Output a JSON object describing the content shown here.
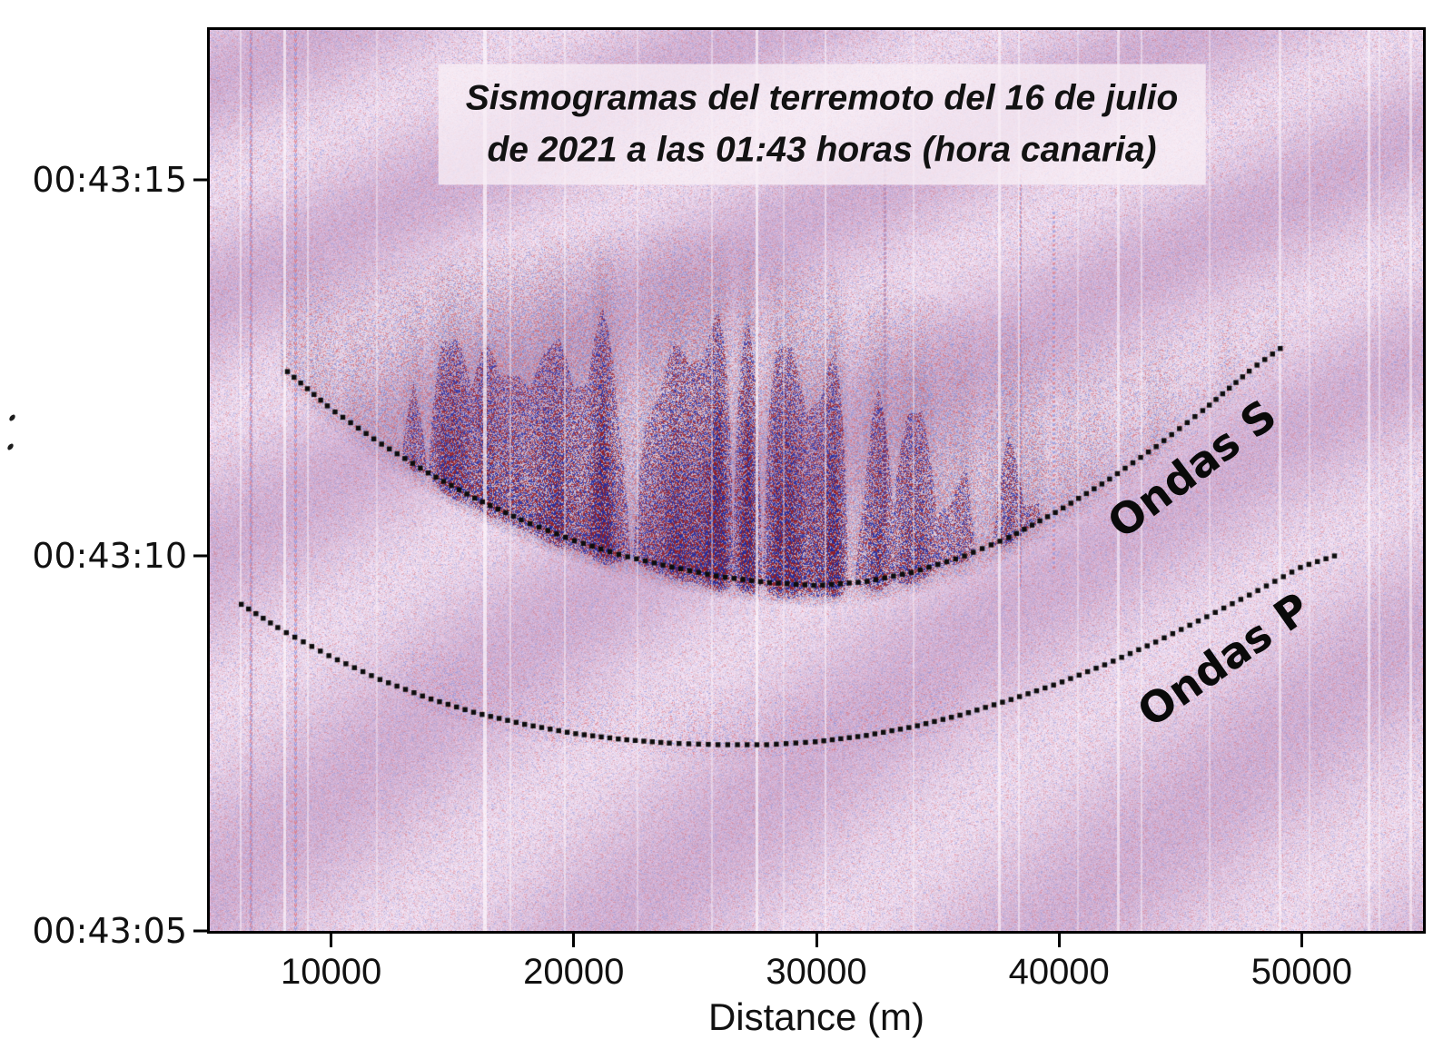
{
  "figure": {
    "title_line1": "Sismogramas del terremoto del 16 de julio",
    "title_line2": "de 2021 a las 01:43 horas (hora canaria)",
    "xlabel": "Distance (m)"
  },
  "chart_data": {
    "type": "heatmap",
    "title": "Sismogramas del terremoto del 16 de julio de 2021 a las 01:43 horas (hora canaria)",
    "xlabel": "Distance (m)",
    "ylabel": "",
    "grid": false,
    "xlim": [
      5000,
      55000
    ],
    "tlim_seconds_after_004300": [
      5,
      17
    ],
    "x_ticks": [
      {
        "value": 10000,
        "label": "10000"
      },
      {
        "value": 20000,
        "label": "20000"
      },
      {
        "value": 30000,
        "label": "30000"
      },
      {
        "value": 40000,
        "label": "40000"
      },
      {
        "value": 50000,
        "label": "50000"
      }
    ],
    "y_ticks": [
      {
        "seconds": 15,
        "label": "00:43:15"
      },
      {
        "seconds": 10,
        "label": "00:43:10"
      },
      {
        "seconds": 5,
        "label": "00:43:05"
      }
    ],
    "series": [
      {
        "name": "Ondas S",
        "style": "dotted",
        "role": "S-wave arrival moveout curve",
        "x": [
          8200,
          10000,
          12000,
          14000,
          16000,
          18000,
          20000,
          22000,
          24000,
          26000,
          28000,
          30000,
          32000,
          34000,
          36000,
          38000,
          40000,
          42000,
          44000,
          46000,
          48000,
          49300
        ],
        "t": [
          12.45,
          11.95,
          11.5,
          11.1,
          10.75,
          10.45,
          10.2,
          10.0,
          9.85,
          9.72,
          9.64,
          9.6,
          9.65,
          9.78,
          9.98,
          10.25,
          10.6,
          11.0,
          11.45,
          11.95,
          12.5,
          12.8
        ]
      },
      {
        "name": "Ondas P",
        "style": "dotted",
        "role": "P-wave arrival moveout curve",
        "x": [
          6300,
          8000,
          10000,
          12000,
          14000,
          16000,
          18000,
          20000,
          22000,
          24000,
          26000,
          28000,
          30000,
          32000,
          34000,
          36000,
          38000,
          40000,
          42000,
          44000,
          46000,
          48000,
          50000,
          51400
        ],
        "t": [
          9.35,
          9.0,
          8.65,
          8.35,
          8.1,
          7.9,
          7.75,
          7.63,
          7.55,
          7.5,
          7.48,
          7.48,
          7.52,
          7.6,
          7.72,
          7.88,
          8.08,
          8.3,
          8.56,
          8.85,
          9.17,
          9.5,
          9.85,
          10.0
        ]
      }
    ],
    "annotations": [
      {
        "text": "Ondas S",
        "d": 45500,
        "t": 11.15,
        "rotation_deg": -37
      },
      {
        "text": "Ondas P",
        "d": 46800,
        "t": 8.6,
        "rotation_deg": -35
      }
    ],
    "render": {
      "base_light": "#eedcee",
      "base_dark": "#d2b2d4",
      "red": "#d96e7a",
      "blue": "#8690dc",
      "dark_red": "#a82430",
      "dark_blue": "#2e34b4",
      "dot_color": "#0d0d0d",
      "title_pos": {
        "fx": 0.5045,
        "fy": 0.1048
      },
      "signal": {
        "center_d": 25000,
        "amp_sigma": 15500,
        "dur_base": 0.35,
        "dur_amp": 4.3,
        "dur_sigma": 17000
      },
      "white_streaks": [
        {
          "x": 0.025,
          "w": 2,
          "a": 0.5
        },
        {
          "x": 0.061,
          "w": 3,
          "a": 0.65
        },
        {
          "x": 0.08,
          "w": 2,
          "a": 0.45
        },
        {
          "x": 0.137,
          "w": 2,
          "a": 0.35
        },
        {
          "x": 0.225,
          "w": 4,
          "a": 0.7
        },
        {
          "x": 0.247,
          "w": 2,
          "a": 0.4
        },
        {
          "x": 0.292,
          "w": 2,
          "a": 0.45
        },
        {
          "x": 0.352,
          "w": 2,
          "a": 0.35
        },
        {
          "x": 0.413,
          "w": 2,
          "a": 0.4
        },
        {
          "x": 0.45,
          "w": 3,
          "a": 0.65
        },
        {
          "x": 0.472,
          "w": 2,
          "a": 0.35
        },
        {
          "x": 0.507,
          "w": 2,
          "a": 0.5
        },
        {
          "x": 0.579,
          "w": 2,
          "a": 0.4
        },
        {
          "x": 0.65,
          "w": 3,
          "a": 0.6
        },
        {
          "x": 0.666,
          "w": 2,
          "a": 0.5
        },
        {
          "x": 0.715,
          "w": 2,
          "a": 0.35
        },
        {
          "x": 0.748,
          "w": 3,
          "a": 0.55
        },
        {
          "x": 0.767,
          "w": 2,
          "a": 0.45
        },
        {
          "x": 0.823,
          "w": 2,
          "a": 0.35
        },
        {
          "x": 0.881,
          "w": 3,
          "a": 0.5
        },
        {
          "x": 0.906,
          "w": 2,
          "a": 0.35
        },
        {
          "x": 0.954,
          "w": 3,
          "a": 0.55
        },
        {
          "x": 0.963,
          "w": 2,
          "a": 0.4
        },
        {
          "x": 0.989,
          "w": 3,
          "a": 0.5
        }
      ],
      "bead_columns": [
        {
          "x": 0.034,
          "s": 1.25,
          "y0": 0,
          "y1": 1
        },
        {
          "x": 0.07,
          "s": 0.85,
          "y0": 0,
          "y1": 1
        },
        {
          "x": 0.556,
          "s": 0.95,
          "y0": 0.14,
          "y1": 0.55
        },
        {
          "x": 0.668,
          "s": 1.05,
          "y0": 0.16,
          "y1": 0.62
        },
        {
          "x": 0.695,
          "s": 0.6,
          "y0": 0.2,
          "y1": 0.6
        }
      ]
    }
  }
}
